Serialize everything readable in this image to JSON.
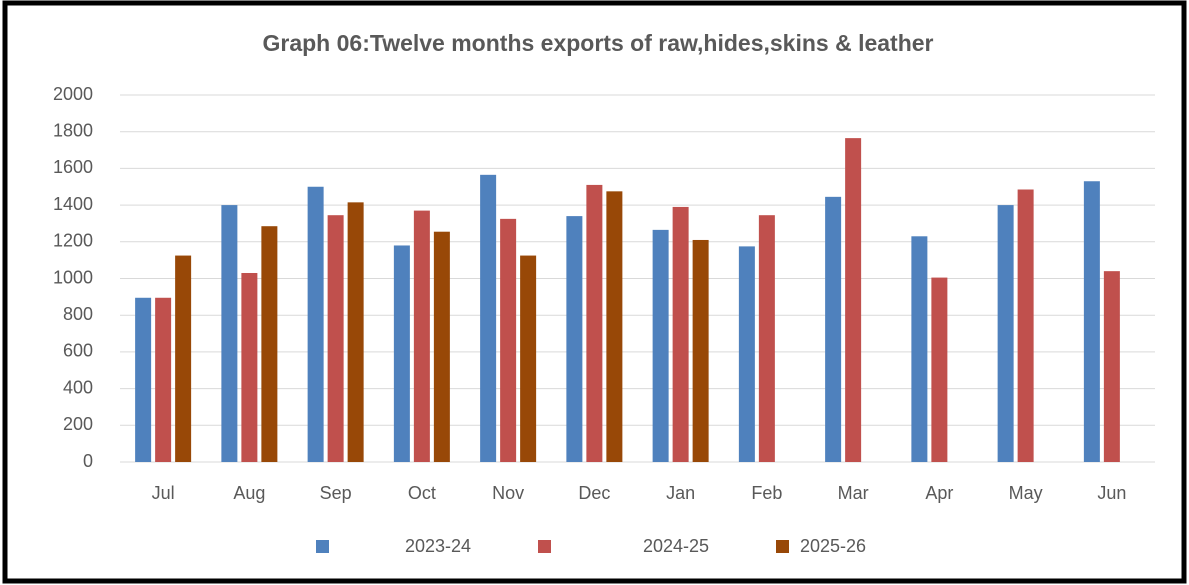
{
  "chart_data": {
    "type": "bar",
    "title": "Graph 06:Twelve months exports of raw,hides,skins & leather",
    "categories": [
      "Jul",
      "Aug",
      "Sep",
      "Oct",
      "Nov",
      "Dec",
      "Jan",
      "Feb",
      "Mar",
      "Apr",
      "May",
      "Jun"
    ],
    "series": [
      {
        "name": "2023-24",
        "color": "#4f81bd",
        "values": [
          895,
          1400,
          1500,
          1180,
          1565,
          1340,
          1265,
          1175,
          1445,
          1230,
          1400,
          1530
        ]
      },
      {
        "name": "2024-25",
        "color": "#c0504d",
        "values": [
          895,
          1030,
          1345,
          1370,
          1325,
          1510,
          1390,
          1345,
          1765,
          1005,
          1485,
          1040
        ]
      },
      {
        "name": "2025-26",
        "color": "#984807",
        "values": [
          1125,
          1285,
          1415,
          1255,
          1125,
          1475,
          1210,
          null,
          null,
          null,
          null,
          null
        ]
      }
    ],
    "ylim": [
      0,
      2000
    ],
    "yticks": [
      0,
      200,
      400,
      600,
      800,
      1000,
      1200,
      1400,
      1600,
      1800,
      2000
    ],
    "grid": true,
    "legend": "bottom"
  }
}
